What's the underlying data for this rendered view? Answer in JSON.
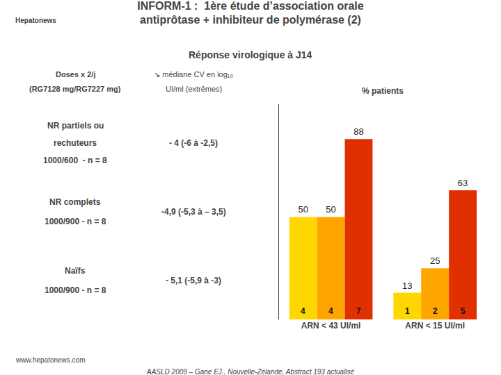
{
  "chart_data": {
    "type": "bar",
    "title": "INFORM-1 :  1ère étude d’association orale\nantiprôtase + inhibiteur de polymérase (2)",
    "subtitle": "Réponse virologique à J14",
    "categories": [
      "ARN < 43 UI/ml",
      "ARN < 15 UI/ml"
    ],
    "series": [
      {
        "color": "#FFD700",
        "values": [
          50,
          13
        ],
        "counts": [
          4,
          1
        ]
      },
      {
        "color": "#FFA500",
        "values": [
          50,
          25
        ],
        "counts": [
          4,
          2
        ]
      },
      {
        "color": "#E03000",
        "values": [
          88,
          63
        ],
        "counts": [
          7,
          5
        ]
      }
    ],
    "ylim": [
      0,
      105
    ],
    "grid": false,
    "data_labels": true,
    "tick_labels": "x",
    "annotations": [
      "Hepatonews",
      "Doses x 2/j",
      "(RG7128 mg/RG7227 mg)",
      "↘ médiane CV en log₁₀",
      "UI/ml (extrêmes)",
      "% patients",
      "NR partiels ou",
      "rechuteurs",
      "1000/600  - n = 8",
      "- 4 (-6 à -2,5)",
      "NR complets",
      "1000/900 - n = 8",
      "-4,9 (-5,3 à – 3,5)",
      "Naïfs",
      "1000/900 - n = 8",
      "- 5,1 (-5,9 à -3)",
      "www.hepatonews.com",
      "AASLD 2009 – Gane EJ., Nouvelle-Zélande, Abstract 193 actualisé"
    ]
  }
}
